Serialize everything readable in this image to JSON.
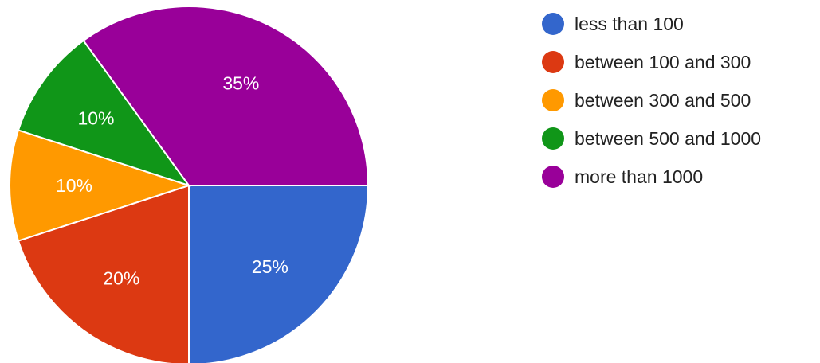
{
  "chart_data": {
    "type": "pie",
    "categories": [
      "less than 100",
      "between 100 and 300",
      "between 300 and 500",
      "between 500 and 1000",
      "more than 1000"
    ],
    "values": [
      25,
      20,
      10,
      10,
      35
    ],
    "value_labels": [
      "25%",
      "20%",
      "10%",
      "10%",
      "35%"
    ],
    "colors": [
      "#3366cc",
      "#dc3912",
      "#ff9900",
      "#109618",
      "#990099"
    ],
    "start_direction": "3 o'clock",
    "direction": "clockwise",
    "legend_position": "right",
    "title": ""
  }
}
